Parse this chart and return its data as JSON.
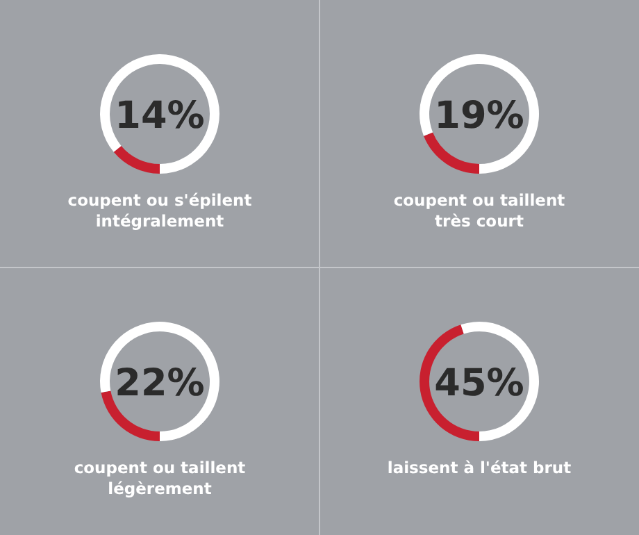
{
  "chart_data": [
    {
      "type": "donut",
      "title": "coupent ou s'épilent intégralement",
      "categories": [
        null,
        null
      ],
      "values": [
        14,
        86
      ],
      "colors": [
        "#c8202f",
        "#ffffff"
      ],
      "value_labels": [
        "14%",
        null
      ]
    },
    {
      "type": "donut",
      "title": "coupent ou taillent très court",
      "categories": [
        null,
        null
      ],
      "values": [
        19,
        81
      ],
      "colors": [
        "#c8202f",
        "#ffffff"
      ],
      "value_labels": [
        "19%",
        null
      ]
    },
    {
      "type": "donut",
      "title": "coupent ou taillent légèrement",
      "categories": [
        null,
        null
      ],
      "values": [
        22,
        78
      ],
      "colors": [
        "#c8202f",
        "#ffffff"
      ],
      "value_labels": [
        "22%",
        null
      ]
    },
    {
      "type": "donut",
      "title": "laissent à l'état brut",
      "categories": [
        null,
        null
      ],
      "values": [
        45,
        55
      ],
      "colors": [
        "#c8202f",
        "#ffffff"
      ],
      "value_labels": [
        "45%",
        null
      ]
    }
  ]
}
